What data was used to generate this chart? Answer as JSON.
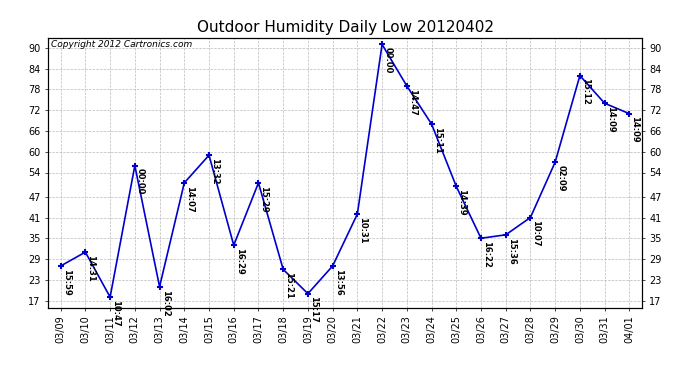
{
  "title": "Outdoor Humidity Daily Low 20120402",
  "copyright": "Copyright 2012 Cartronics.com",
  "x_labels": [
    "03/09",
    "03/10",
    "03/11",
    "03/12",
    "03/13",
    "03/14",
    "03/15",
    "03/16",
    "03/17",
    "03/18",
    "03/19",
    "03/20",
    "03/21",
    "03/22",
    "03/23",
    "03/24",
    "03/25",
    "03/26",
    "03/27",
    "03/28",
    "03/29",
    "03/30",
    "03/31",
    "04/01"
  ],
  "y_values": [
    27,
    31,
    18,
    56,
    21,
    51,
    59,
    33,
    51,
    26,
    19,
    27,
    42,
    91,
    79,
    68,
    50,
    35,
    36,
    41,
    57,
    82,
    74,
    71
  ],
  "point_labels": [
    "15:59",
    "14:31",
    "10:47",
    "00:00",
    "16:02",
    "14:07",
    "13:32",
    "16:29",
    "15:29",
    "15:21",
    "15:17",
    "13:56",
    "10:31",
    "00:00",
    "14:47",
    "15:11",
    "14:39",
    "16:22",
    "15:36",
    "10:07",
    "02:09",
    "15:12",
    "14:09",
    "14:09"
  ],
  "line_color": "#0000cc",
  "marker_color": "#0000cc",
  "bg_color": "#ffffff",
  "grid_color": "#bbbbbb",
  "ylim": [
    15,
    93
  ],
  "y_ticks": [
    17,
    23,
    29,
    35,
    41,
    47,
    54,
    60,
    66,
    72,
    78,
    84,
    90
  ],
  "title_fontsize": 11,
  "copyright_fontsize": 6.5,
  "label_fontsize": 6,
  "tick_fontsize": 7
}
